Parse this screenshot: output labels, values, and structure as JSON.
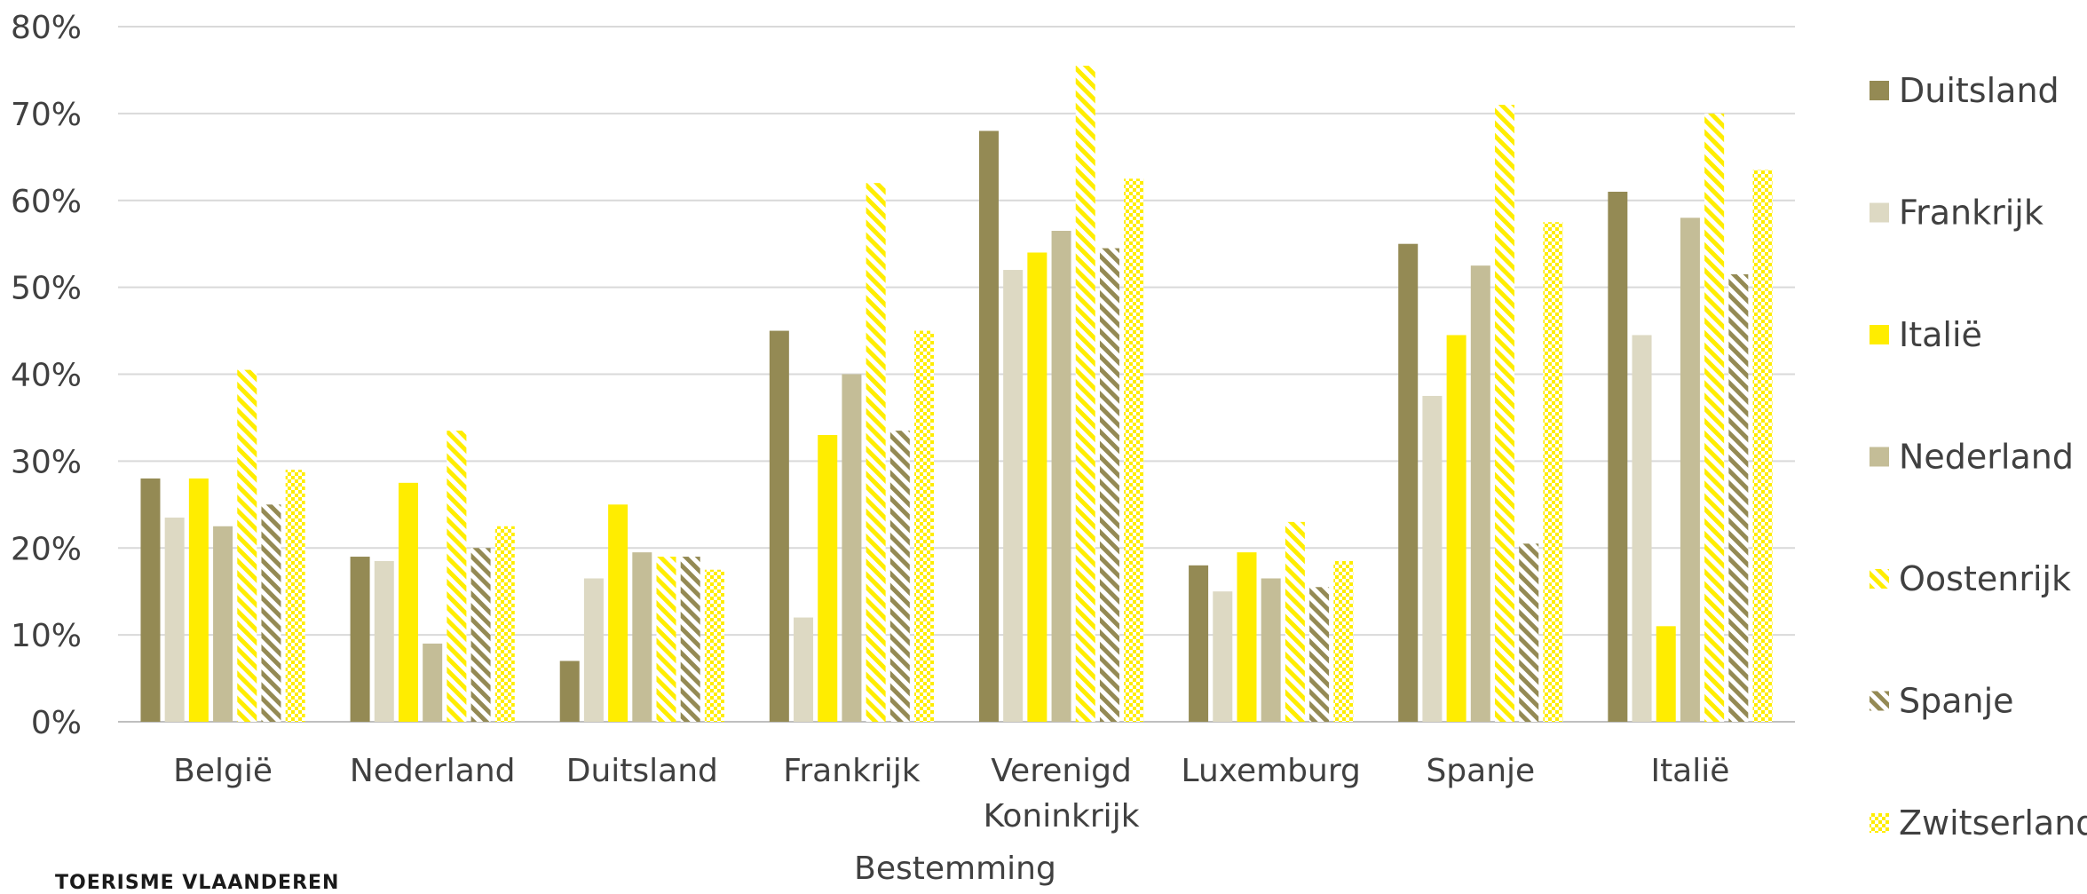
{
  "chart_data": {
    "type": "bar",
    "xlabel": "Bestemming",
    "ylabel": "",
    "ylim": [
      0,
      0.8
    ],
    "yticks": [
      "0%",
      "10%",
      "20%",
      "30%",
      "40%",
      "50%",
      "60%",
      "70%",
      "80%"
    ],
    "grid": true,
    "legend_position": "right",
    "categories": [
      "België",
      "Nederland",
      "Duitsland",
      "Frankrijk",
      "Verenigd Koninkrijk",
      "Luxemburg",
      "Spanje",
      "Italië"
    ],
    "series": [
      {
        "name": "Duitsland",
        "color": "#948a54",
        "pattern": "solid",
        "values": [
          0.28,
          0.19,
          0.07,
          0.45,
          0.68,
          0.18,
          0.55,
          0.61
        ]
      },
      {
        "name": "Frankrijk",
        "color": "#ddd9c3",
        "pattern": "solid",
        "values": [
          0.235,
          0.185,
          0.165,
          0.12,
          0.52,
          0.15,
          0.375,
          0.445
        ]
      },
      {
        "name": "Italië",
        "color": "#ffed00",
        "pattern": "solid",
        "values": [
          0.28,
          0.275,
          0.25,
          0.33,
          0.54,
          0.195,
          0.445,
          0.11
        ]
      },
      {
        "name": "Nederland",
        "color": "#c4bd97",
        "pattern": "solid",
        "values": [
          0.225,
          0.09,
          0.195,
          0.4,
          0.565,
          0.165,
          0.525,
          0.58
        ]
      },
      {
        "name": "Oostenrijk",
        "color": "#ffed00",
        "pattern": "diagonal",
        "values": [
          0.405,
          0.335,
          0.19,
          0.62,
          0.755,
          0.23,
          0.71,
          0.7
        ]
      },
      {
        "name": "Spanje",
        "color": "#948a54",
        "pattern": "diagonal",
        "values": [
          0.25,
          0.2,
          0.19,
          0.335,
          0.545,
          0.155,
          0.205,
          0.515
        ]
      },
      {
        "name": "Zwitserland",
        "color": "#ffed00",
        "pattern": "checker",
        "values": [
          0.29,
          0.225,
          0.175,
          0.45,
          0.625,
          0.185,
          0.575,
          0.635
        ]
      }
    ]
  },
  "footer": "TOERISME VLAANDEREN"
}
